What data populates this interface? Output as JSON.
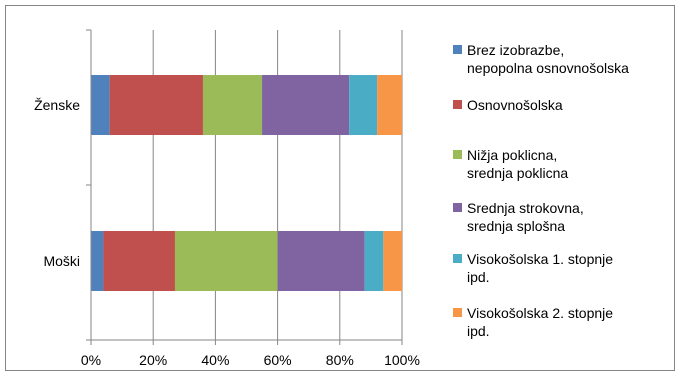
{
  "chart_data": {
    "type": "bar",
    "orientation": "horizontal",
    "stacked": "percent",
    "categories": [
      "Ženske",
      "Moški"
    ],
    "series": [
      {
        "name": "Brez izobrazbe, nepopolna osnovnošolska",
        "color": "#4F81BD",
        "values": [
          6,
          4
        ]
      },
      {
        "name": "Osnovnošolska",
        "color": "#C0504D",
        "values": [
          30,
          23
        ]
      },
      {
        "name": "Nižja poklicna, srednja poklicna",
        "color": "#9BBB59",
        "values": [
          19,
          33
        ]
      },
      {
        "name": "Srednja strokovna, srednja splošna",
        "color": "#8064A2",
        "values": [
          28,
          28
        ]
      },
      {
        "name": "Visokošolska 1. stopnje ipd.",
        "color": "#4BACC6",
        "values": [
          9,
          6
        ]
      },
      {
        "name": "Visokošolska 2. stopnje ipd.",
        "color": "#F79646",
        "values": [
          8,
          6
        ]
      }
    ],
    "x_ticks": [
      "0%",
      "20%",
      "40%",
      "60%",
      "80%",
      "100%"
    ],
    "xlim": [
      0,
      100
    ],
    "grid": true,
    "legend_position": "right",
    "title": "",
    "xlabel": "",
    "ylabel": ""
  }
}
